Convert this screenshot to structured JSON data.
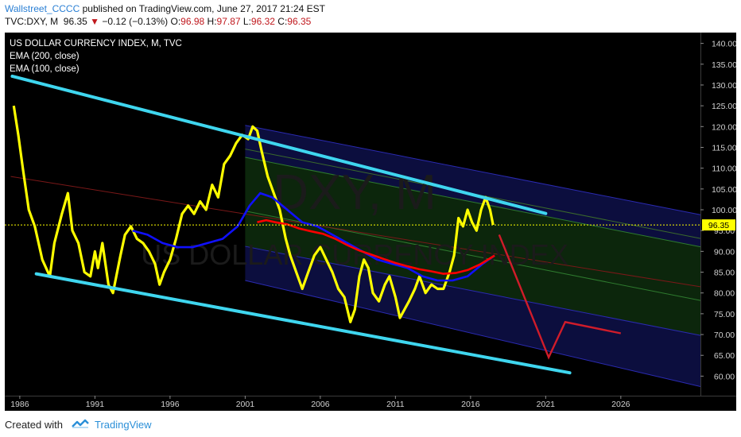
{
  "header": {
    "author": "Wallstreet_CCCC",
    "published": "published on TradingView.com, June 27, 2017 21:24 EST",
    "symbol": "TVC:DXY, M",
    "price": "96.35",
    "change": "−0.12 (−0.13%)",
    "open_label": "O:",
    "open": "96.98",
    "high_label": "H:",
    "high": "97.87",
    "low_label": "L:",
    "low": "96.32",
    "close_label": "C:",
    "close": "96.35"
  },
  "footer": {
    "created_with": "Created with",
    "brand": "TradingView",
    "brand_icon": "tradingview-logo-icon"
  },
  "colors": {
    "background": "#000000",
    "price": "#ffff00",
    "ema200": "#ff0000",
    "ema100": "#1010ff",
    "channel": "#3fd6ef",
    "forecast": "#d01c2a",
    "fib_fill_blue": "#0d0f45",
    "fib_fill_green": "#0d2a0d"
  },
  "chart_data": {
    "type": "line",
    "title": "US DOLLAR CURRENCY INDEX, M, TVC",
    "watermark": "DXY, M",
    "watermark_sub": "US DOLLAR CURRENCY INDEX",
    "indicators": [
      "EMA (200, close)",
      "EMA (100, close)"
    ],
    "last_price": 96.35,
    "last_price_label": "96.35",
    "xlim": [
      1985.0,
      2031.3
    ],
    "ylim": [
      55.3,
      142.6
    ],
    "x_ticks": [
      1986,
      1991,
      1996,
      2001,
      2006,
      2011,
      2016,
      2021,
      2026
    ],
    "y_ticks": [
      "60.00",
      "65.00",
      "70.00",
      "75.00",
      "80.00",
      "85.00",
      "90.00",
      "95.00",
      "100.00",
      "105.00",
      "110.00",
      "115.00",
      "120.00",
      "125.00",
      "130.00",
      "135.00",
      "140.00"
    ],
    "grid": false,
    "series": [
      {
        "name": "DXY",
        "type": "price",
        "color": "#ffff00",
        "x": [
          1985.6,
          1985.9,
          1986.2,
          1986.6,
          1987.0,
          1987.5,
          1988.0,
          1988.3,
          1988.8,
          1989.2,
          1989.5,
          1989.9,
          1990.3,
          1990.7,
          1991.0,
          1991.2,
          1991.5,
          1991.9,
          1992.2,
          1992.7,
          1993.0,
          1993.4,
          1993.8,
          1994.2,
          1994.6,
          1995.0,
          1995.3,
          1995.6,
          1996.0,
          1996.4,
          1996.8,
          1997.2,
          1997.6,
          1998.0,
          1998.4,
          1998.8,
          1999.2,
          1999.6,
          2000.0,
          2000.4,
          2000.8,
          2001.2,
          2001.5,
          2001.8,
          2002.1,
          2002.5,
          2002.9,
          2003.3,
          2003.7,
          2004.0,
          2004.4,
          2004.8,
          2005.2,
          2005.6,
          2006.0,
          2006.4,
          2006.8,
          2007.2,
          2007.6,
          2008.0,
          2008.3,
          2008.6,
          2008.9,
          2009.2,
          2009.5,
          2009.9,
          2010.3,
          2010.6,
          2011.0,
          2011.3,
          2011.6,
          2011.9,
          2012.3,
          2012.6,
          2013.0,
          2013.4,
          2013.8,
          2014.2,
          2014.6,
          2014.9,
          2015.2,
          2015.5,
          2015.8,
          2016.1,
          2016.4,
          2016.7,
          2017.0,
          2017.3,
          2017.5
        ],
        "y": [
          125,
          118,
          110,
          100,
          96,
          88,
          84,
          92,
          99,
          104,
          95,
          92,
          85,
          84,
          90,
          86,
          92,
          82,
          80,
          89,
          94,
          96,
          93,
          92,
          90,
          87,
          82,
          85,
          88,
          93,
          99,
          101,
          99,
          102,
          100,
          106,
          103,
          111,
          113,
          116,
          118,
          117,
          120,
          119,
          114,
          108,
          104,
          100,
          93,
          89,
          85,
          81,
          85,
          89,
          91,
          88,
          85,
          81,
          79,
          73,
          76,
          84,
          88,
          86,
          80,
          78,
          82,
          84,
          79,
          74,
          76,
          78,
          81,
          84,
          80,
          82,
          81,
          81,
          85,
          89,
          98,
          96,
          100,
          97,
          95,
          100,
          103,
          100,
          96.35
        ]
      },
      {
        "name": "EMA 100",
        "type": "ema",
        "color": "#1010ff",
        "x": [
          1993.5,
          1994.5,
          1995.5,
          1996.5,
          1997.5,
          1998.5,
          1999.5,
          2000.5,
          2001.3,
          2002.0,
          2002.8,
          2003.8,
          2004.8,
          2005.8,
          2006.8,
          2007.8,
          2008.8,
          2009.8,
          2010.8,
          2011.8,
          2012.8,
          2013.8,
          2014.8,
          2015.8,
          2016.8,
          2017.6
        ],
        "y": [
          95,
          94,
          92,
          91,
          91,
          92,
          93,
          96,
          101,
          104,
          103,
          100,
          97,
          96,
          94,
          92,
          90,
          88,
          87,
          86,
          84,
          83,
          83,
          84,
          87,
          89
        ]
      },
      {
        "name": "EMA 200",
        "type": "ema",
        "color": "#ff0000",
        "x": [
          2001.8,
          2002.4,
          2003.0,
          2003.8,
          2004.6,
          2005.4,
          2006.2,
          2007.0,
          2007.8,
          2008.6,
          2009.4,
          2010.2,
          2011.0,
          2011.8,
          2012.6,
          2013.4,
          2014.2,
          2015.0,
          2015.8,
          2016.6,
          2017.6
        ],
        "y": [
          97,
          97.5,
          97,
          96.5,
          95.5,
          94.8,
          94.2,
          93,
          91.5,
          90.2,
          89.2,
          88.2,
          87.2,
          86.4,
          85.7,
          85.2,
          84.6,
          84.8,
          85.5,
          86.8,
          89
        ]
      }
    ],
    "channel_lines": [
      {
        "x": [
          1985.5,
          2021.0
        ],
        "y": [
          132.1,
          99.1
        ]
      },
      {
        "x": [
          1987.1,
          2022.6
        ],
        "y": [
          84.6,
          60.8
        ]
      }
    ],
    "forecast": {
      "x": [
        2017.9,
        2021.2,
        2022.3,
        2026.0
      ],
      "y": [
        94.0,
        64.5,
        73.0,
        70.3
      ]
    },
    "fibonacci_channel": {
      "levels": [
        {
          "x": [
            2001.0,
            2031.3
          ],
          "y": [
            120.3,
            98.8
          ]
        },
        {
          "x": [
            2001.0,
            2031.3
          ],
          "y": [
            114.6,
            93.1
          ]
        },
        {
          "x": [
            2001.0,
            2031.3
          ],
          "y": [
            112.6,
            91.1
          ]
        },
        {
          "x": [
            2001.0,
            2031.3
          ],
          "y": [
            99.7,
            78.2
          ]
        },
        {
          "x": [
            2001.0,
            2031.3
          ],
          "y": [
            91.2,
            69.8
          ]
        },
        {
          "x": [
            2001.0,
            2031.3
          ],
          "y": [
            83.0,
            57.5
          ]
        }
      ],
      "median": {
        "x": [
          1985.4,
          2031.3
        ],
        "y": [
          108.0,
          81.5
        ]
      }
    }
  }
}
